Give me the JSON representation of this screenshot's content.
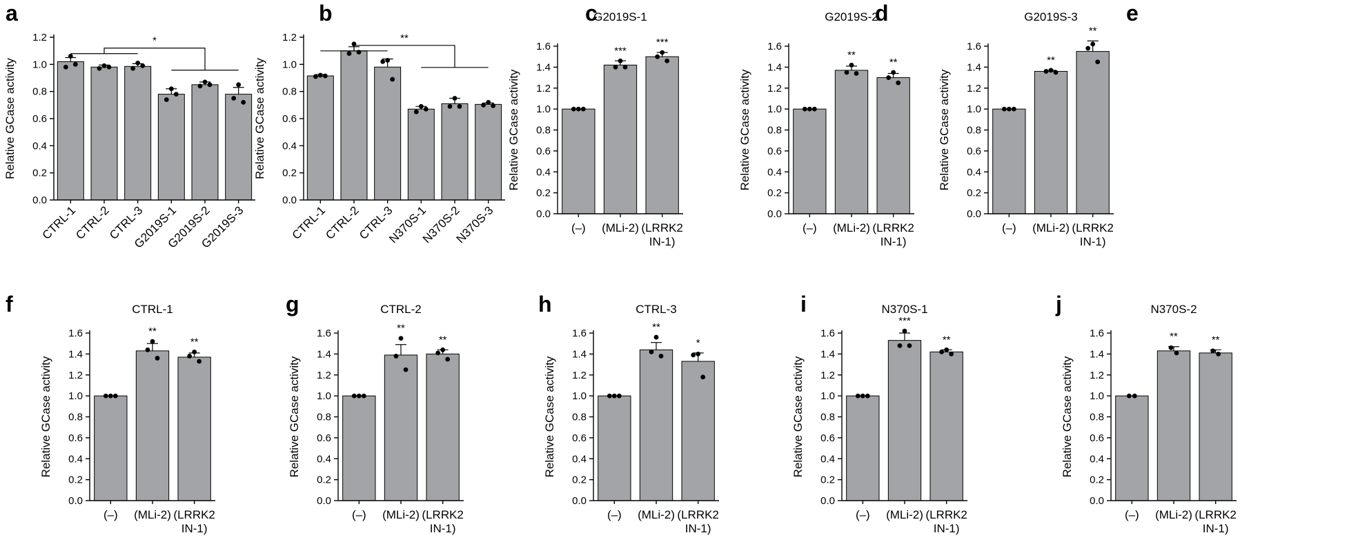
{
  "chart_data": [
    {
      "panel": "a",
      "type": "bar",
      "title": "",
      "ylabel": "Relative GCase activity",
      "ylim": [
        0,
        1.2
      ],
      "yticks": [
        0.0,
        0.2,
        0.4,
        0.6,
        0.8,
        1.0,
        1.2
      ],
      "categories": [
        "CTRL-1",
        "CTRL-2",
        "CTRL-3",
        "G2019S-1",
        "G2019S-2",
        "G2019S-3"
      ],
      "rotated_labels": true,
      "values": [
        1.02,
        0.98,
        0.985,
        0.78,
        0.85,
        0.78
      ],
      "errors": [
        0.03,
        0.015,
        0.02,
        0.04,
        0.02,
        0.05
      ],
      "points": [
        [
          1.06,
          0.98,
          1.0
        ],
        [
          0.99,
          0.97,
          0.98
        ],
        [
          1.01,
          0.97,
          0.99
        ],
        [
          0.82,
          0.74,
          0.78
        ],
        [
          0.87,
          0.84,
          0.85
        ],
        [
          0.85,
          0.75,
          0.72
        ]
      ],
      "stars": [
        "",
        "",
        "",
        "",
        "",
        ""
      ],
      "bracket": {
        "left": [
          0,
          2
        ],
        "right": [
          3,
          5
        ],
        "label": "*",
        "level": 1.12
      }
    },
    {
      "panel": "b",
      "type": "bar",
      "title": "",
      "ylabel": "Relative GCase activity",
      "ylim": [
        0,
        1.2
      ],
      "yticks": [
        0.0,
        0.2,
        0.4,
        0.6,
        0.8,
        1.0,
        1.2
      ],
      "categories": [
        "CTRL-1",
        "CTRL-2",
        "CTRL-3",
        "N370S-1",
        "N370S-2",
        "N370S-3"
      ],
      "rotated_labels": true,
      "values": [
        0.915,
        1.1,
        0.98,
        0.67,
        0.71,
        0.705
      ],
      "errors": [
        0.01,
        0.03,
        0.06,
        0.02,
        0.04,
        0.01
      ],
      "points": [
        [
          0.92,
          0.91,
          0.915
        ],
        [
          1.15,
          1.08,
          1.09
        ],
        [
          1.03,
          1.02,
          0.89
        ],
        [
          0.69,
          0.65,
          0.67
        ],
        [
          0.75,
          0.69,
          0.69
        ],
        [
          0.72,
          0.7,
          0.695
        ]
      ],
      "stars": [
        "",
        "",
        "",
        "",
        "",
        ""
      ],
      "bracket": {
        "left": [
          0,
          2
        ],
        "right": [
          3,
          5
        ],
        "label": "**",
        "level": 1.14
      }
    },
    {
      "panel": "c",
      "type": "bar",
      "title": "G2019S-1",
      "ylabel": "Relative GCase activity",
      "ylim": [
        0,
        1.6
      ],
      "yticks": [
        0.0,
        0.2,
        0.4,
        0.6,
        0.8,
        1.0,
        1.2,
        1.4,
        1.6
      ],
      "categories": [
        "(–)",
        "(MLi-2)",
        "(LRRK2\nIN-1)"
      ],
      "values": [
        1.0,
        1.42,
        1.5
      ],
      "errors": [
        0.0,
        0.04,
        0.04
      ],
      "points": [
        [
          1.0,
          1.0,
          1.0
        ],
        [
          1.46,
          1.4,
          1.4
        ],
        [
          1.54,
          1.5,
          1.46
        ]
      ],
      "stars": [
        "",
        "***",
        "***"
      ]
    },
    {
      "panel": "d",
      "type": "bar",
      "title": "G2019S-2",
      "ylabel": "Relative GCase activity",
      "ylim": [
        0,
        1.6
      ],
      "yticks": [
        0.0,
        0.2,
        0.4,
        0.6,
        0.8,
        1.0,
        1.2,
        1.4,
        1.6
      ],
      "categories": [
        "(–)",
        "(MLi-2)",
        "(LRRK2\nIN-1)"
      ],
      "values": [
        1.0,
        1.37,
        1.3
      ],
      "errors": [
        0.0,
        0.04,
        0.04
      ],
      "points": [
        [
          1.0,
          1.0,
          1.0
        ],
        [
          1.42,
          1.35,
          1.34
        ],
        [
          1.35,
          1.3,
          1.25
        ]
      ],
      "stars": [
        "",
        "**",
        "**"
      ]
    },
    {
      "panel": "e",
      "type": "bar",
      "title": "G2019S-3",
      "ylabel": "Relative GCase activity",
      "ylim": [
        0,
        1.6
      ],
      "yticks": [
        0.0,
        0.2,
        0.4,
        0.6,
        0.8,
        1.0,
        1.2,
        1.4,
        1.6
      ],
      "categories": [
        "(–)",
        "(MLi-2)",
        "(LRRK2\nIN-1)"
      ],
      "values": [
        1.0,
        1.36,
        1.55
      ],
      "errors": [
        0.0,
        0.01,
        0.1
      ],
      "points": [
        [
          1.0,
          1.0,
          1.0
        ],
        [
          1.37,
          1.36,
          1.35
        ],
        [
          1.62,
          1.58,
          1.45
        ]
      ],
      "stars": [
        "",
        "**",
        "**"
      ]
    },
    {
      "panel": "f",
      "type": "bar",
      "title": "CTRL-1",
      "ylabel": "Relative GCase activity",
      "ylim": [
        0,
        1.6
      ],
      "yticks": [
        0.0,
        0.2,
        0.4,
        0.6,
        0.8,
        1.0,
        1.2,
        1.4,
        1.6
      ],
      "categories": [
        "(–)",
        "(MLi-2)",
        "(LRRK2\nIN-1)"
      ],
      "values": [
        1.0,
        1.43,
        1.37
      ],
      "errors": [
        0.0,
        0.07,
        0.04
      ],
      "points": [
        [
          1.0,
          1.0,
          1.0
        ],
        [
          1.52,
          1.44,
          1.36
        ],
        [
          1.42,
          1.38,
          1.33
        ]
      ],
      "stars": [
        "",
        "**",
        "**"
      ]
    },
    {
      "panel": "g",
      "type": "bar",
      "title": "CTRL-2",
      "ylabel": "Relative GCase activity",
      "ylim": [
        0,
        1.6
      ],
      "yticks": [
        0.0,
        0.2,
        0.4,
        0.6,
        0.8,
        1.0,
        1.2,
        1.4,
        1.6
      ],
      "categories": [
        "(–)",
        "(MLi-2)",
        "(LRRK2\nIN-1)"
      ],
      "values": [
        1.0,
        1.39,
        1.4
      ],
      "errors": [
        0.0,
        0.1,
        0.04
      ],
      "points": [
        [
          1.0,
          1.0,
          1.0
        ],
        [
          1.55,
          1.38,
          1.25
        ],
        [
          1.44,
          1.41,
          1.35
        ]
      ],
      "stars": [
        "",
        "**",
        "**"
      ]
    },
    {
      "panel": "h",
      "type": "bar",
      "title": "CTRL-3",
      "ylabel": "Relative GCase activity",
      "ylim": [
        0,
        1.6
      ],
      "yticks": [
        0.0,
        0.2,
        0.4,
        0.6,
        0.8,
        1.0,
        1.2,
        1.4,
        1.6
      ],
      "categories": [
        "(–)",
        "(MLi-2)",
        "(LRRK2\nIN-1)"
      ],
      "values": [
        1.0,
        1.44,
        1.33
      ],
      "errors": [
        0.0,
        0.07,
        0.08
      ],
      "points": [
        [
          1.0,
          1.0,
          1.0
        ],
        [
          1.56,
          1.42,
          1.38
        ],
        [
          1.4,
          1.39,
          1.18
        ]
      ],
      "stars": [
        "",
        "**",
        "*"
      ]
    },
    {
      "panel": "i",
      "type": "bar",
      "title": "N370S-1",
      "ylabel": "Relative GCase activity",
      "ylim": [
        0,
        1.6
      ],
      "yticks": [
        0.0,
        0.2,
        0.4,
        0.6,
        0.8,
        1.0,
        1.2,
        1.4,
        1.6
      ],
      "categories": [
        "(–)",
        "(MLi-2)",
        "(LRRK2\nIN-1)"
      ],
      "values": [
        1.0,
        1.53,
        1.42
      ],
      "errors": [
        0.0,
        0.07,
        0.02
      ],
      "points": [
        [
          1.0,
          1.0,
          1.0
        ],
        [
          1.62,
          1.48,
          1.48
        ],
        [
          1.44,
          1.42,
          1.4
        ]
      ],
      "stars": [
        "",
        "***",
        "**"
      ]
    },
    {
      "panel": "j",
      "type": "bar",
      "title": "N370S-2",
      "ylabel": "Relative GCase activity",
      "ylim": [
        0,
        1.6
      ],
      "yticks": [
        0.0,
        0.2,
        0.4,
        0.6,
        0.8,
        1.0,
        1.2,
        1.4,
        1.6
      ],
      "categories": [
        "(–)",
        "(MLi-2)",
        "(LRRK2\nIN-1)"
      ],
      "values": [
        1.0,
        1.43,
        1.41
      ],
      "errors": [
        0.0,
        0.04,
        0.03
      ],
      "points": [
        [
          1.0,
          1.0
        ],
        [
          1.46,
          1.41
        ],
        [
          1.43,
          1.4
        ]
      ],
      "stars": [
        "",
        "**",
        "**"
      ]
    }
  ]
}
